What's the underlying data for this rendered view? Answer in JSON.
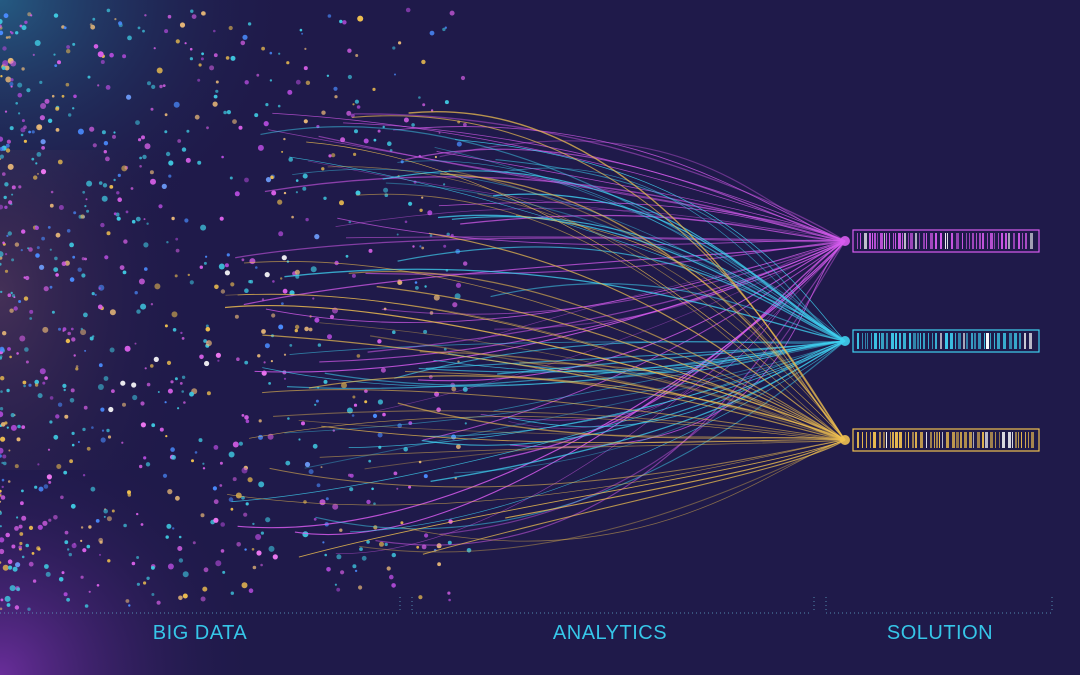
{
  "colors": {
    "background": "#1f1a4a",
    "magenta": "#d85cf0",
    "cyan": "#3fd0f0",
    "gold": "#f0c050",
    "label": "#36c6e8",
    "divider": "#5fa8c8"
  },
  "sections": {
    "big_data": "BIG DATA",
    "analytics": "ANALYTICS",
    "solution": "SOLUTION"
  },
  "outputs": [
    {
      "name": "magenta-output-bar",
      "color": "#d85cf0"
    },
    {
      "name": "cyan-output-bar",
      "color": "#3fd0f0"
    },
    {
      "name": "gold-output-bar",
      "color": "#f0c050"
    }
  ]
}
